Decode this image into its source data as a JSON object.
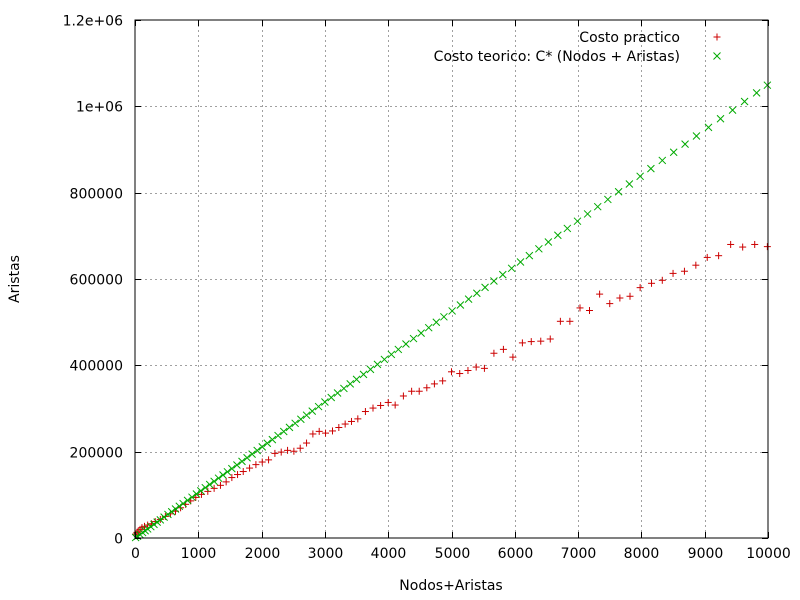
{
  "chart_data": {
    "type": "scatter",
    "xlabel": "Nodos+Aristas",
    "ylabel": "Aristas",
    "xlim": [
      0,
      10000
    ],
    "ylim": [
      0,
      1200000
    ],
    "grid": true,
    "legend_position": "top-right",
    "x_ticks": [
      0,
      1000,
      2000,
      3000,
      4000,
      5000,
      6000,
      7000,
      8000,
      9000,
      10000
    ],
    "x_tick_labels": [
      "0",
      "1000",
      "2000",
      "3000",
      "4000",
      "5000",
      "6000",
      "7000",
      "8000",
      "9000",
      "10000"
    ],
    "y_ticks": [
      0,
      200000,
      400000,
      600000,
      800000,
      1000000,
      1200000
    ],
    "y_tick_labels": [
      "0",
      "200000",
      "400000",
      "600000",
      "800000",
      "1e+06",
      "1.2e+06"
    ],
    "series": [
      {
        "name": "Costo practico",
        "marker": "plus",
        "color": "#cc0000",
        "points": [
          [
            10,
            9000
          ],
          [
            30,
            13000
          ],
          [
            50,
            16000
          ],
          [
            80,
            20000
          ],
          [
            110,
            24000
          ],
          [
            150,
            27000
          ],
          [
            200,
            30000
          ],
          [
            260,
            33000
          ],
          [
            320,
            38000
          ],
          [
            400,
            43000
          ],
          [
            480,
            50000
          ],
          [
            560,
            56000
          ],
          [
            640,
            62000
          ],
          [
            720,
            70000
          ],
          [
            800,
            78000
          ],
          [
            880,
            86000
          ],
          [
            960,
            94000
          ],
          [
            1050,
            101000
          ],
          [
            1150,
            108000
          ],
          [
            1250,
            115000
          ],
          [
            1350,
            122000
          ],
          [
            1440,
            130000
          ],
          [
            1530,
            140000
          ],
          [
            1620,
            147000
          ],
          [
            1710,
            154000
          ],
          [
            1810,
            162000
          ],
          [
            1910,
            170000
          ],
          [
            2010,
            176000
          ],
          [
            2110,
            181000
          ],
          [
            2210,
            196000
          ],
          [
            2310,
            199000
          ],
          [
            2410,
            203000
          ],
          [
            2510,
            201000
          ],
          [
            2610,
            208000
          ],
          [
            2710,
            220000
          ],
          [
            2810,
            241000
          ],
          [
            2910,
            247000
          ],
          [
            3010,
            243000
          ],
          [
            3120,
            248000
          ],
          [
            3220,
            256000
          ],
          [
            3320,
            264000
          ],
          [
            3420,
            270000
          ],
          [
            3520,
            276000
          ],
          [
            3640,
            293000
          ],
          [
            3760,
            301000
          ],
          [
            3880,
            307000
          ],
          [
            4000,
            314000
          ],
          [
            4110,
            308000
          ],
          [
            4240,
            329000
          ],
          [
            4370,
            340000
          ],
          [
            4490,
            340000
          ],
          [
            4610,
            348000
          ],
          [
            4730,
            357000
          ],
          [
            4860,
            364000
          ],
          [
            5000,
            385000
          ],
          [
            5130,
            381000
          ],
          [
            5260,
            388000
          ],
          [
            5390,
            396000
          ],
          [
            5520,
            393000
          ],
          [
            5670,
            428000
          ],
          [
            5820,
            437000
          ],
          [
            5970,
            419000
          ],
          [
            6120,
            452000
          ],
          [
            6260,
            455000
          ],
          [
            6410,
            456000
          ],
          [
            6560,
            461000
          ],
          [
            6720,
            502000
          ],
          [
            6870,
            502000
          ],
          [
            7030,
            533000
          ],
          [
            7180,
            527000
          ],
          [
            7340,
            565000
          ],
          [
            7500,
            543000
          ],
          [
            7660,
            556000
          ],
          [
            7820,
            560000
          ],
          [
            7980,
            580000
          ],
          [
            8160,
            590000
          ],
          [
            8330,
            597000
          ],
          [
            8500,
            613000
          ],
          [
            8680,
            618000
          ],
          [
            8860,
            632000
          ],
          [
            9040,
            650000
          ],
          [
            9220,
            654000
          ],
          [
            9410,
            680000
          ],
          [
            9600,
            674000
          ],
          [
            9790,
            680000
          ],
          [
            9990,
            675000
          ]
        ]
      },
      {
        "name": "Costo teorico: C* (Nodos + Aristas)",
        "marker": "cross",
        "color": "#00aa00",
        "points": [
          [
            10,
            1000
          ],
          [
            40,
            4000
          ],
          [
            80,
            8000
          ],
          [
            120,
            12600
          ],
          [
            160,
            16800
          ],
          [
            200,
            21000
          ],
          [
            250,
            26250
          ],
          [
            300,
            31500
          ],
          [
            350,
            36750
          ],
          [
            400,
            42000
          ],
          [
            460,
            48300
          ],
          [
            520,
            54600
          ],
          [
            580,
            60900
          ],
          [
            640,
            67200
          ],
          [
            700,
            73500
          ],
          [
            760,
            79800
          ],
          [
            830,
            87150
          ],
          [
            900,
            94500
          ],
          [
            970,
            101850
          ],
          [
            1040,
            109200
          ],
          [
            1110,
            116550
          ],
          [
            1180,
            123900
          ],
          [
            1250,
            131250
          ],
          [
            1320,
            138600
          ],
          [
            1390,
            145950
          ],
          [
            1460,
            153300
          ],
          [
            1530,
            160650
          ],
          [
            1610,
            169050
          ],
          [
            1690,
            177450
          ],
          [
            1770,
            185850
          ],
          [
            1850,
            194250
          ],
          [
            1930,
            202650
          ],
          [
            2010,
            211050
          ],
          [
            2090,
            219450
          ],
          [
            2170,
            227850
          ],
          [
            2260,
            237300
          ],
          [
            2350,
            246750
          ],
          [
            2440,
            256200
          ],
          [
            2530,
            265650
          ],
          [
            2620,
            275100
          ],
          [
            2710,
            284550
          ],
          [
            2800,
            294000
          ],
          [
            2900,
            304500
          ],
          [
            3000,
            315000
          ],
          [
            3100,
            325500
          ],
          [
            3200,
            336000
          ],
          [
            3300,
            346500
          ],
          [
            3400,
            357000
          ],
          [
            3500,
            367500
          ],
          [
            3610,
            379050
          ],
          [
            3720,
            390600
          ],
          [
            3830,
            402150
          ],
          [
            3940,
            413700
          ],
          [
            4050,
            425250
          ],
          [
            4160,
            436800
          ],
          [
            4280,
            449400
          ],
          [
            4400,
            462000
          ],
          [
            4520,
            474600
          ],
          [
            4640,
            487200
          ],
          [
            4760,
            499800
          ],
          [
            4880,
            512400
          ],
          [
            5010,
            526050
          ],
          [
            5140,
            539700
          ],
          [
            5270,
            553350
          ],
          [
            5400,
            567000
          ],
          [
            5530,
            580650
          ],
          [
            5670,
            595350
          ],
          [
            5810,
            610050
          ],
          [
            5950,
            624750
          ],
          [
            6090,
            639450
          ],
          [
            6230,
            654150
          ],
          [
            6380,
            669900
          ],
          [
            6530,
            685650
          ],
          [
            6680,
            701400
          ],
          [
            6830,
            717150
          ],
          [
            6990,
            733950
          ],
          [
            7150,
            750750
          ],
          [
            7310,
            767550
          ],
          [
            7470,
            784350
          ],
          [
            7640,
            802200
          ],
          [
            7810,
            820050
          ],
          [
            7980,
            837900
          ],
          [
            8150,
            855750
          ],
          [
            8330,
            874650
          ],
          [
            8510,
            893550
          ],
          [
            8690,
            912450
          ],
          [
            8870,
            931350
          ],
          [
            9060,
            951300
          ],
          [
            9250,
            971250
          ],
          [
            9440,
            991200
          ],
          [
            9630,
            1011150
          ],
          [
            9820,
            1031100
          ],
          [
            9990,
            1048950
          ]
        ]
      }
    ]
  }
}
